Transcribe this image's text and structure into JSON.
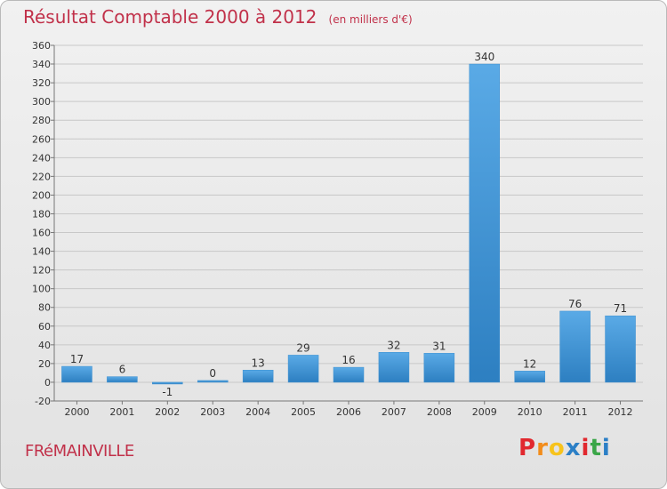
{
  "chart_data": {
    "type": "bar",
    "title": "Résultat Comptable 2000 à 2012",
    "subtitle": "(en milliers d'€)",
    "categories": [
      "2000",
      "2001",
      "2002",
      "2003",
      "2004",
      "2005",
      "2006",
      "2007",
      "2008",
      "2009",
      "2010",
      "2011",
      "2012"
    ],
    "values": [
      17,
      6,
      -1,
      0,
      13,
      29,
      16,
      32,
      31,
      340,
      12,
      76,
      71
    ],
    "value_labels": [
      "17",
      "6",
      "-1",
      "0",
      "13",
      "29",
      "16",
      "32",
      "31",
      "340",
      "12",
      "76",
      "71"
    ],
    "ylim": [
      -20,
      360
    ],
    "ytick_step": 20,
    "xlabel": "",
    "ylabel": "",
    "grid": true,
    "bar_color_top": "#5aaae6",
    "bar_color_bottom": "#2d7fc1"
  },
  "footer": {
    "commune": "FRéMAINVILLE",
    "logo_letters": [
      "P",
      "r",
      "o",
      "x",
      "i",
      "t",
      "i"
    ],
    "logo_colors": [
      "#e1282e",
      "#f28c1b",
      "#f7c31c",
      "#2b7fc6",
      "#e1282e",
      "#3aa648",
      "#2b7fc6"
    ]
  },
  "colors": {
    "title": "#c1314a",
    "grid": "#c8c8c8"
  }
}
